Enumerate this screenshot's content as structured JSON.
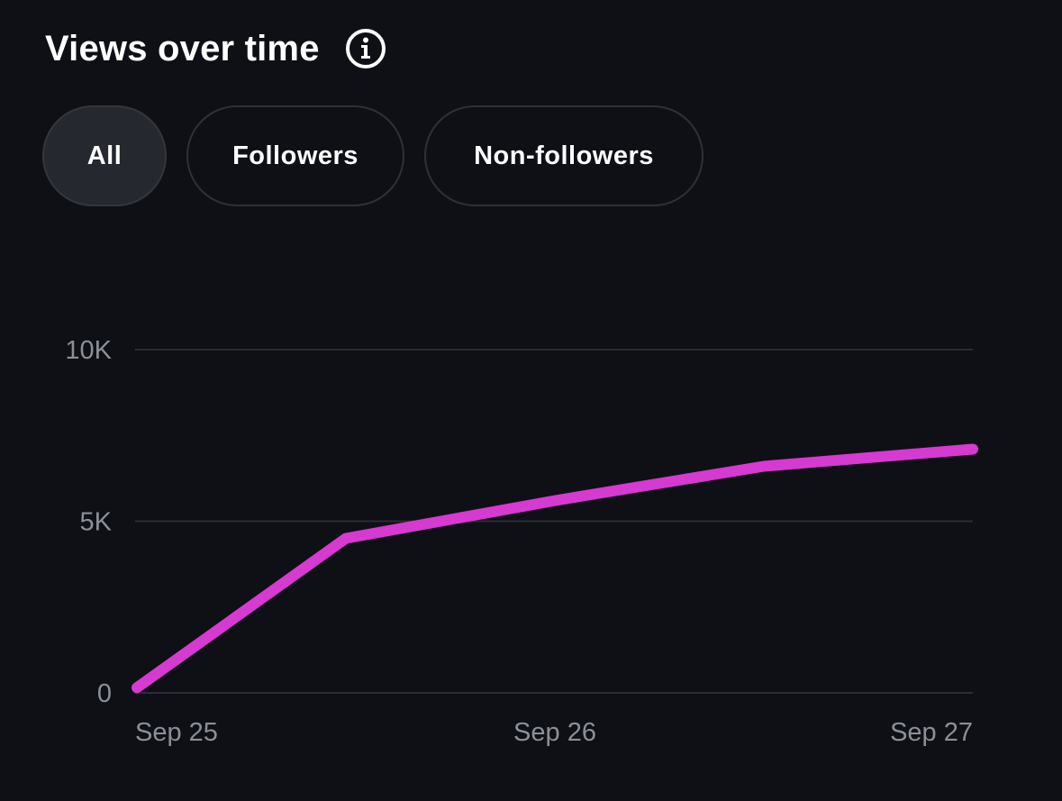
{
  "header": {
    "title": "Views over time",
    "info_icon": "info-icon"
  },
  "tabs": [
    {
      "label": "All",
      "active": true
    },
    {
      "label": "Followers",
      "active": false
    },
    {
      "label": "Non-followers",
      "active": false
    }
  ],
  "colors": {
    "background": "#0e1016",
    "line": "#d63ad0",
    "grid": "#2a2d33",
    "axis_text": "#8b8f98"
  },
  "chart_data": {
    "type": "line",
    "title": "",
    "xlabel": "",
    "ylabel": "",
    "ylim": [
      0,
      10000
    ],
    "yticks": [
      {
        "value": 0,
        "label": "0"
      },
      {
        "value": 5000,
        "label": "5K"
      },
      {
        "value": 10000,
        "label": "10K"
      }
    ],
    "xticks": [
      {
        "value": 0,
        "label": "Sep 25"
      },
      {
        "value": 1,
        "label": "Sep 26"
      },
      {
        "value": 2,
        "label": "Sep 27"
      }
    ],
    "xlim": [
      0,
      2
    ],
    "grid": true,
    "series": [
      {
        "x": [
          0,
          0.5,
          1.0,
          1.5,
          2.0
        ],
        "values": [
          150,
          4500,
          5600,
          6600,
          7100
        ]
      }
    ]
  }
}
